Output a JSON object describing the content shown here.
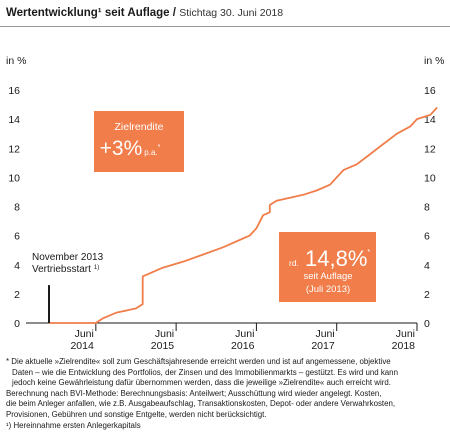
{
  "header": {
    "title": "Wertentwicklung¹ seit Auflage",
    "separator": "/",
    "stand": "Stichtag 30. Juni 2018"
  },
  "chart_data": {
    "type": "line",
    "ylabel_left": "in %",
    "ylabel_right": "in %",
    "ylim": [
      0,
      16
    ],
    "yticks": [
      0,
      2,
      4,
      6,
      8,
      10,
      12,
      14,
      16
    ],
    "xlim": [
      "2013-11",
      "2018-06"
    ],
    "xticks": [
      {
        "x": "2014-06",
        "line1": "Juni",
        "line2": "2014"
      },
      {
        "x": "2015-06",
        "line1": "Juni",
        "line2": "2015"
      },
      {
        "x": "2016-06",
        "line1": "Juni",
        "line2": "2016"
      },
      {
        "x": "2017-06",
        "line1": "Juni",
        "line2": "2017"
      },
      {
        "x": "2018-06",
        "line1": "Juni",
        "line2": "2018"
      }
    ],
    "grid": false,
    "line_color": "#f07d4a",
    "series": [
      {
        "points": [
          [
            "2013-11",
            0.0
          ],
          [
            "2014-06",
            0.0
          ],
          [
            "2014-07",
            0.3
          ],
          [
            "2014-09",
            0.7
          ],
          [
            "2014-12",
            1.0
          ],
          [
            "2015-01",
            1.3
          ],
          [
            "2015-01",
            3.2
          ],
          [
            "2015-04",
            3.8
          ],
          [
            "2015-07",
            4.2
          ],
          [
            "2015-10",
            4.7
          ],
          [
            "2016-01",
            5.2
          ],
          [
            "2016-04",
            5.8
          ],
          [
            "2016-05",
            6.0
          ],
          [
            "2016-06",
            6.5
          ],
          [
            "2016-07",
            7.4
          ],
          [
            "2016-08",
            7.6
          ],
          [
            "2016-08",
            8.1
          ],
          [
            "2016-09",
            8.4
          ],
          [
            "2016-11",
            8.6
          ],
          [
            "2017-01",
            8.8
          ],
          [
            "2017-03",
            9.1
          ],
          [
            "2017-05",
            9.5
          ],
          [
            "2017-06",
            10.0
          ],
          [
            "2017-07",
            10.5
          ],
          [
            "2017-09",
            10.9
          ],
          [
            "2017-11",
            11.6
          ],
          [
            "2018-01",
            12.3
          ],
          [
            "2018-03",
            13.0
          ],
          [
            "2018-05",
            13.5
          ],
          [
            "2018-06",
            14.0
          ],
          [
            "2018-08",
            14.3
          ],
          [
            "2018-09",
            14.8
          ]
        ]
      }
    ],
    "marker": {
      "x": "2013-11",
      "label_line1": "November 2013",
      "label_line2": "Vertriebsstart",
      "note": "1)"
    },
    "callout_target": {
      "title": "Zielrendite",
      "value": "+3%",
      "unit": "p.a.",
      "footnote_mark": "*"
    },
    "callout_result": {
      "prefix": "rd.",
      "value": "14,8%",
      "footnote_mark": "*",
      "line2": "seit Auflage",
      "line3": "(Juli 2013)"
    },
    "accent_color": "#f07d4a"
  },
  "footnotes": {
    "star_line1": "* Die aktuelle »Zielrendite« soll zum Geschäftsjahresende erreicht werden und ist auf angemessene, objektive",
    "star_line2": "Daten – wie die Entwicklung des Portfolios, der Zinsen und des Immobilienmarkts – gestützt. Es wird und kann",
    "star_line3": "jedoch keine Gewährleistung dafür übernommen werden, dass die jeweilige »Zielrendite« auch erreicht wird.",
    "method_line1": "Berechnung nach BVI-Methode: Berechnungsbasis: Anteilwert; Ausschüttung wird wieder angelegt. Kosten,",
    "method_line2": "die beim Anleger anfallen, wie z.B. Ausgabeaufschlag, Transaktionskosten, Depot- oder andere Verwahrkosten,",
    "method_line3": "Provisionen, Gebühren und sonstige Entgelte, werden nicht berücksichtigt.",
    "note1": "¹) Hereinnahme ersten Anlegerkapitals"
  }
}
